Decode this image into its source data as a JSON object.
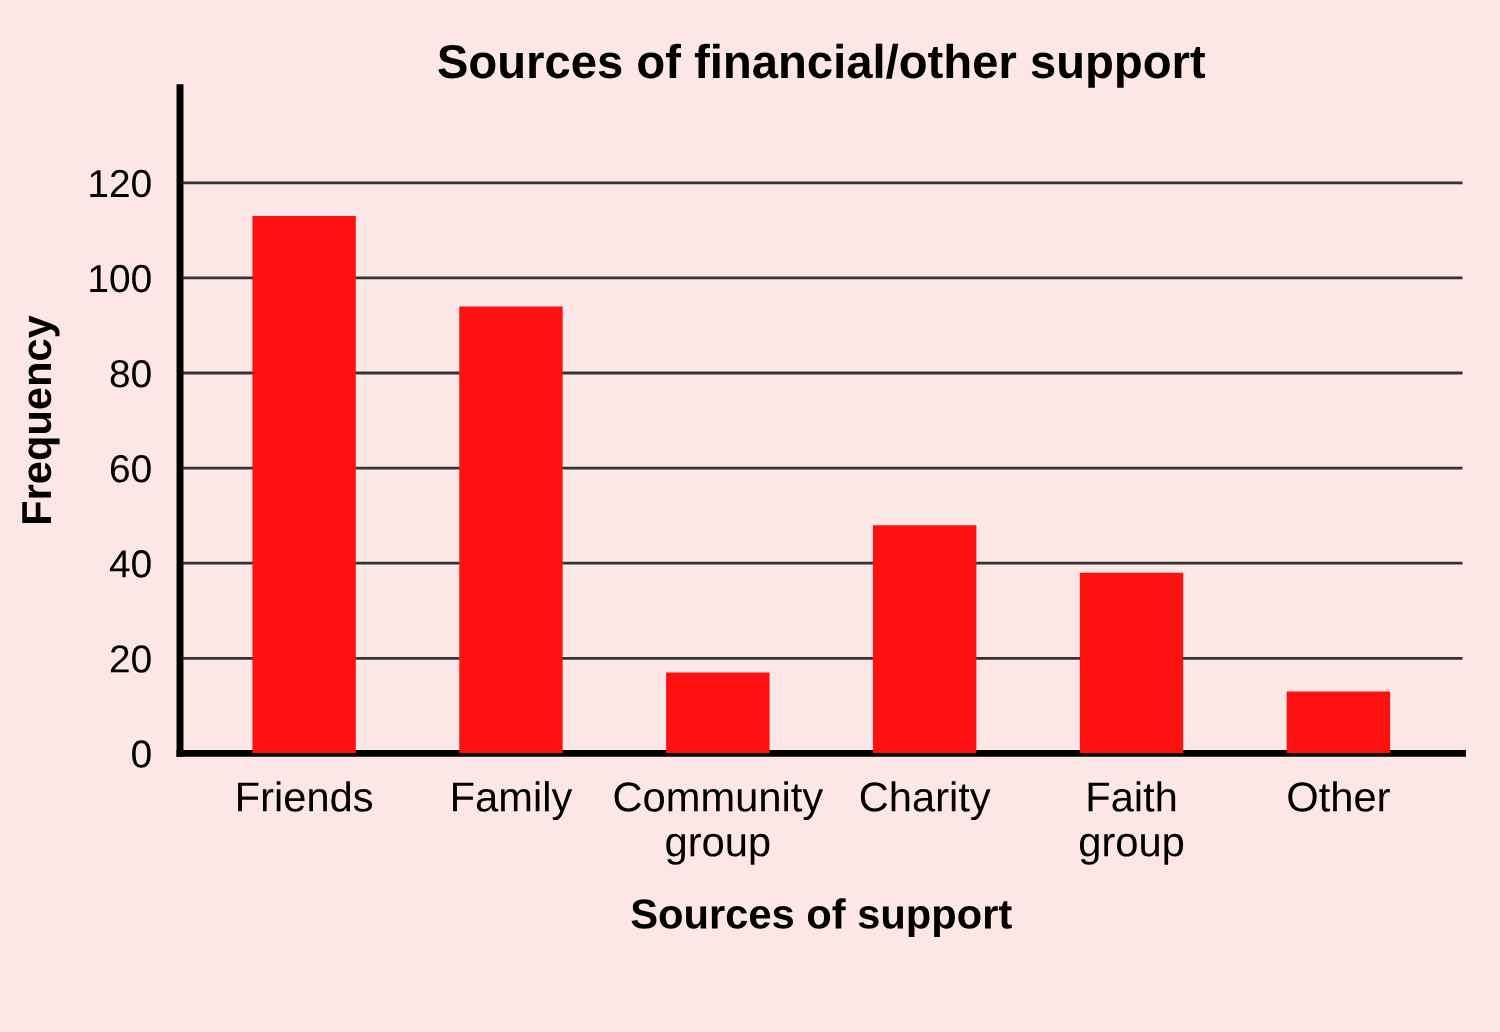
{
  "chart_data": {
    "type": "bar",
    "title": "Sources of financial/other support",
    "xlabel": "Sources of support",
    "ylabel": "Frequency",
    "categories": [
      "Friends",
      "Family",
      "Community\ngroup",
      "Charity",
      "Faith\ngroup",
      "Other"
    ],
    "values": [
      113,
      94,
      17,
      48,
      38,
      13
    ],
    "color": "#ff1111",
    "ylim": [
      0,
      140
    ],
    "yticks": [
      0,
      20,
      40,
      60,
      80,
      100,
      120
    ],
    "grid": "y",
    "legend": false
  }
}
